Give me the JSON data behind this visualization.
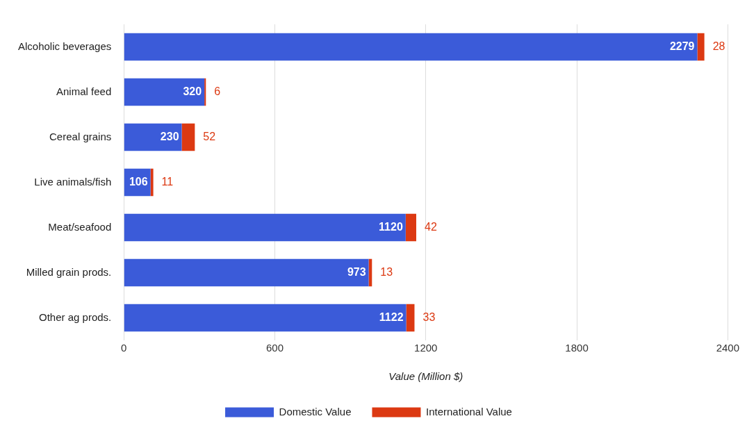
{
  "chart_data": {
    "type": "bar",
    "orientation": "horizontal",
    "stacked": true,
    "xlabel": "Value (Million $)",
    "categories": [
      "Alcoholic beverages",
      "Animal feed",
      "Cereal grains",
      "Live animals/fish",
      "Meat/seafood",
      "Milled grain prods.",
      "Other ag prods."
    ],
    "series": [
      {
        "name": "Domestic Value",
        "color": "#3b5bd9",
        "values": [
          2279,
          320,
          230,
          106,
          1120,
          973,
          1122
        ]
      },
      {
        "name": "International Value",
        "color": "#dc3912",
        "values": [
          28,
          6,
          52,
          11,
          42,
          13,
          33
        ]
      }
    ],
    "xlim": [
      0,
      2400
    ],
    "xticks": [
      0,
      600,
      1200,
      1800,
      2400
    ],
    "grid": "x",
    "legend": "bottom",
    "data_labels": true
  }
}
